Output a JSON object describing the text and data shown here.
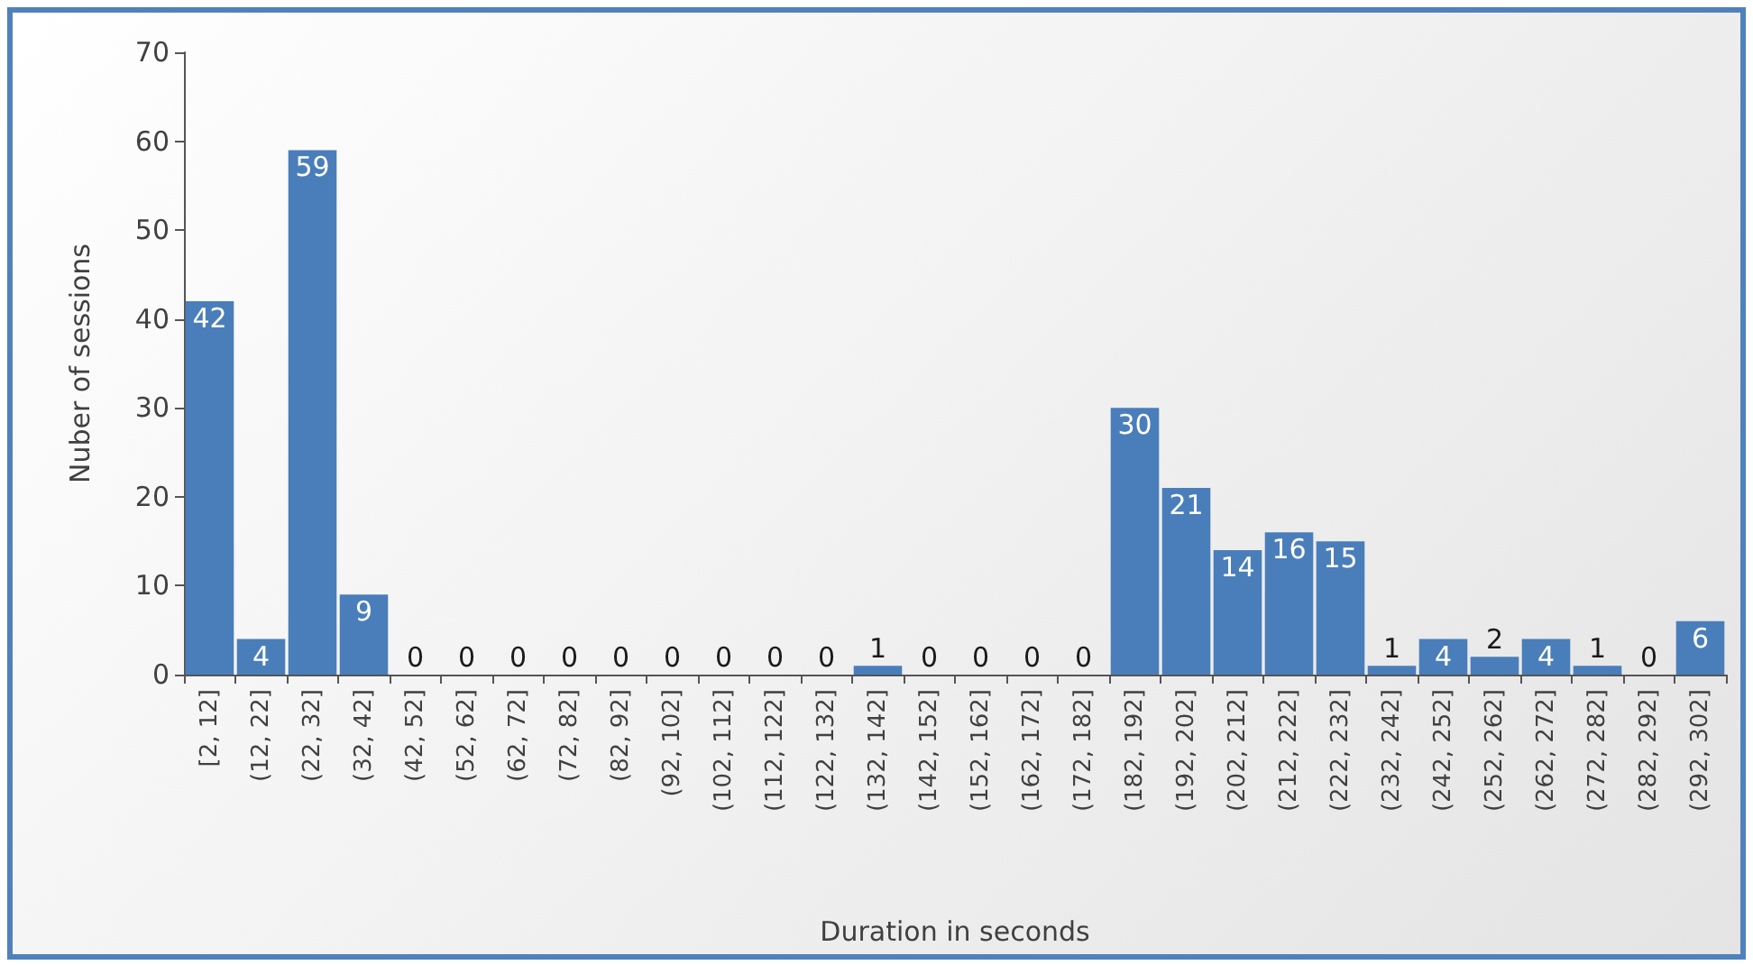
{
  "chart_data": {
    "type": "bar",
    "xlabel": "Duration in seconds",
    "ylabel": "Nuber of sessions",
    "categories": [
      "[2, 12]",
      "(12, 22]",
      "(22, 32]",
      "(32, 42]",
      "(42, 52]",
      "(52, 62]",
      "(62, 72]",
      "(72, 82]",
      "(82, 92]",
      "(92, 102]",
      "(102, 112]",
      "(112, 122]",
      "(122, 132]",
      "(132, 142]",
      "(142, 152]",
      "(152, 162]",
      "(162, 172]",
      "(172, 182]",
      "(182, 192]",
      "(192, 202]",
      "(202, 212]",
      "(212, 222]",
      "(222, 232]",
      "(232, 242]",
      "(242, 252]",
      "(252, 262]",
      "(262, 272]",
      "(272, 282]",
      "(282, 292]",
      "(292, 302]"
    ],
    "values": [
      42,
      4,
      59,
      9,
      0,
      0,
      0,
      0,
      0,
      0,
      0,
      0,
      0,
      1,
      0,
      0,
      0,
      0,
      30,
      21,
      14,
      16,
      15,
      1,
      4,
      2,
      4,
      1,
      0,
      6
    ],
    "color": "#4a7ebb",
    "ylim": [
      0,
      70
    ],
    "yticks": [
      0,
      10,
      20,
      30,
      40,
      50,
      60,
      70
    ],
    "grid": false,
    "data_labels": true
  }
}
